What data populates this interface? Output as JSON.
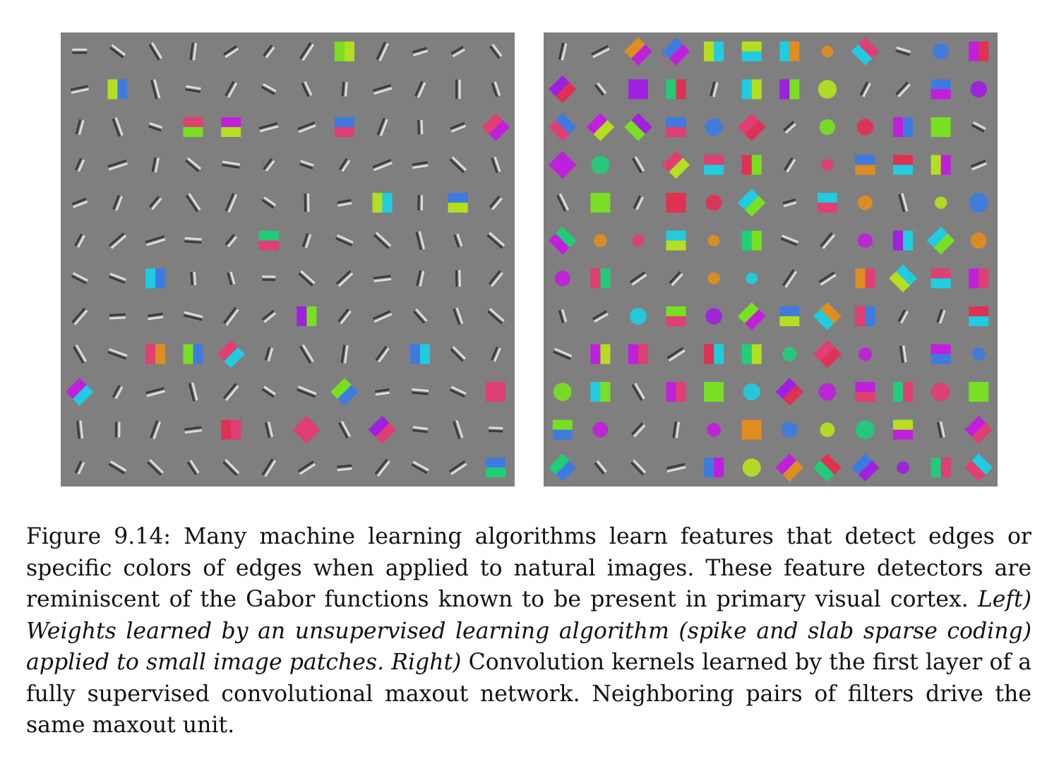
{
  "figure": {
    "label": "Figure 9.14:",
    "text_1": "Many machine learning algorithms learn features that detect edges or specific colors of edges when applied to natural images. These feature detectors are reminiscent of the Gabor functions known to be present in primary visual cortex.",
    "text_left": "Left) Weights learned by an unsupervised learning algorithm (spike and slab sparse coding) applied to small image patches.",
    "text_right_label": "Right)",
    "text_2": "Convolution kernels learned by the first layer of a fully supervised convolutional maxout network. Neighboring pairs of filters drive the same maxout unit."
  },
  "panels": {
    "left": {
      "grid": [
        12,
        12
      ],
      "background": "#7f7f7f",
      "content": "mostly grayscale oriented edge filters with some color edges"
    },
    "right": {
      "grid": [
        12,
        12
      ],
      "background": "#7f7f7f",
      "content": "colorful convolution kernels in neighboring pairs"
    }
  },
  "palette": [
    "#ff2a6d",
    "#00e676",
    "#2979ff",
    "#ff9100",
    "#d500f9",
    "#c6ff00",
    "#00e5ff",
    "#ff1744",
    "#aa00ff",
    "#76ff03"
  ]
}
